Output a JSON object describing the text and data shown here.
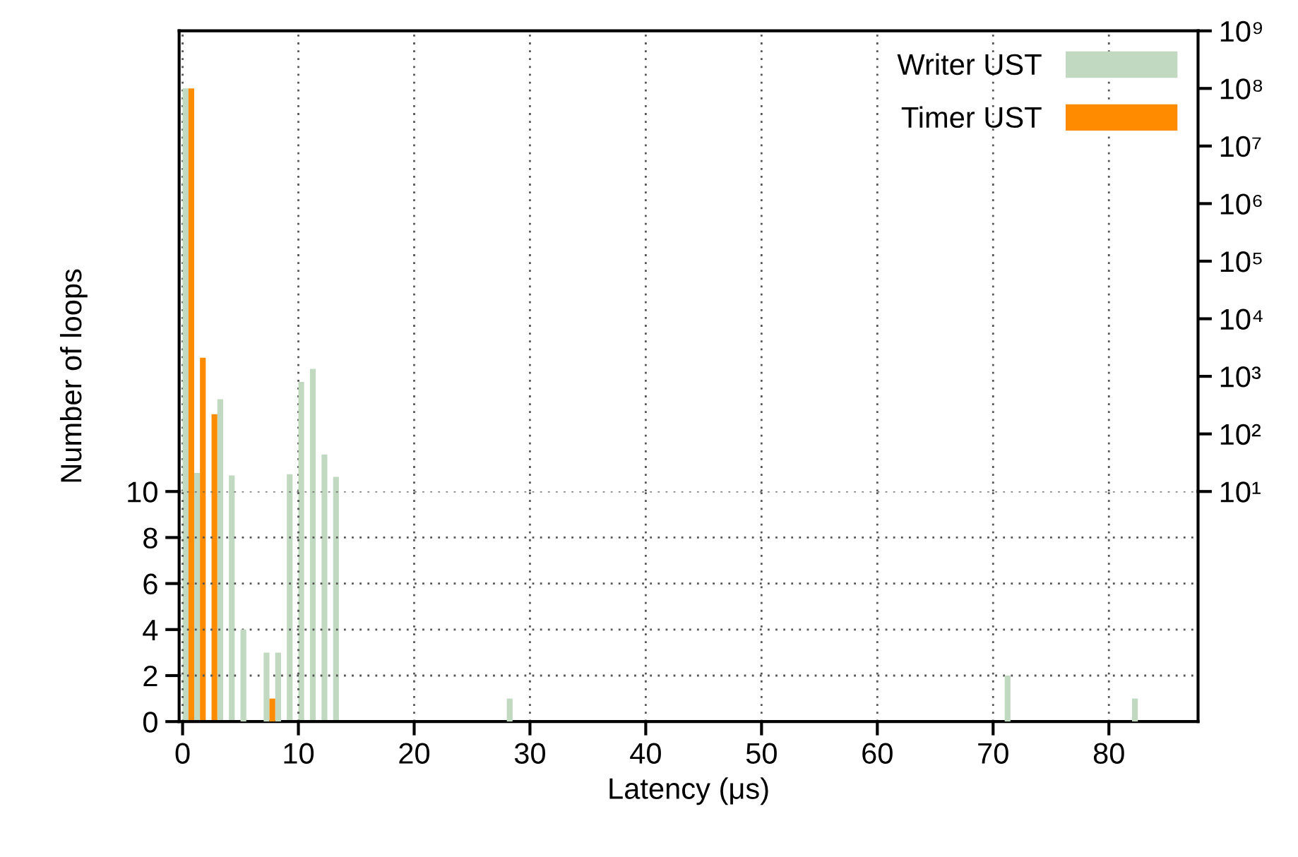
{
  "chart_data": [
    {
      "type": "bar",
      "log": true,
      "grid": "x",
      "legend": "top right",
      "tick_labels": "y",
      "series": [
        {
          "name": "Writer UST",
          "color": "#c0d9c0",
          "x": [
            0.25,
            1.25,
            3.25,
            4.25,
            9.25,
            10.25,
            11.25,
            12.25,
            13.25
          ],
          "values": [
            100000000,
            21,
            400,
            19,
            20,
            800,
            1350,
            44,
            18
          ]
        },
        {
          "name": "Timer UST",
          "color": "#ff8c00",
          "x": [
            0.75,
            1.75,
            2.75
          ],
          "values": [
            100000000,
            2100,
            220
          ]
        }
      ],
      "xlim": [
        -0.3,
        87.7
      ],
      "xticks": [
        0,
        10,
        20,
        30,
        40,
        50,
        60,
        70,
        80
      ],
      "ylim": [
        10,
        1000000000
      ],
      "yticks": [
        {
          "value": 10,
          "label": "10¹"
        },
        {
          "value": 100,
          "label": "10²"
        },
        {
          "value": 1000,
          "label": "10³"
        },
        {
          "value": 10000,
          "label": "10⁴"
        },
        {
          "value": 100000,
          "label": "10⁵"
        },
        {
          "value": 1000000,
          "label": "10⁶"
        },
        {
          "value": 10000000,
          "label": "10⁷"
        },
        {
          "value": 100000000,
          "label": "10⁸"
        },
        {
          "value": 1000000000,
          "label": "10⁹"
        }
      ]
    },
    {
      "type": "bar",
      "xlabel": "Latency (μs)",
      "ylabel": "Number of loops",
      "grid": true,
      "series": [
        {
          "color": "#c0d9c0",
          "x": [
            5.25,
            7.25,
            8.25,
            28.25,
            71.25,
            82.25
          ],
          "values": [
            4,
            3,
            3,
            1,
            2,
            1
          ]
        },
        {
          "color": "#ff8c00",
          "x": [
            7.75
          ],
          "values": [
            1
          ]
        }
      ],
      "xlim": [
        -0.3,
        87.7
      ],
      "xticks": [
        0,
        10,
        20,
        30,
        40,
        50,
        60,
        70,
        80
      ],
      "ylim": [
        0,
        10
      ],
      "yticks": [
        0,
        2,
        4,
        6,
        8,
        10
      ]
    }
  ]
}
